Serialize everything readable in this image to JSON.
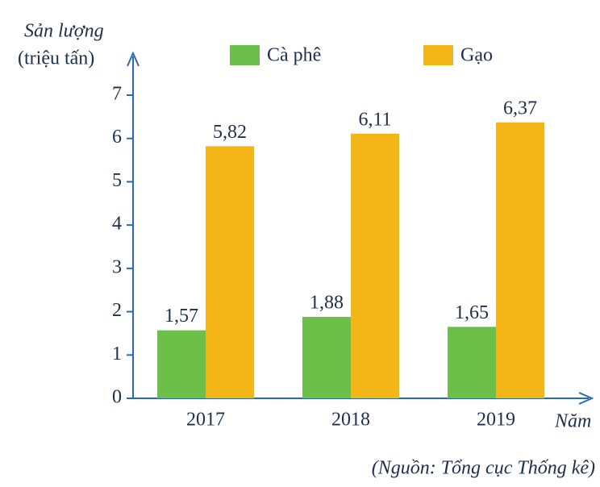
{
  "chart_data": {
    "type": "bar",
    "y_label": "Sản lượng",
    "y_unit": "(triệu tấn)",
    "x_label": "Năm",
    "source": "(Nguồn: Tổng cục Thống kê)",
    "categories": [
      "2017",
      "2018",
      "2019"
    ],
    "series": [
      {
        "name": "Cà phê",
        "color": "#6cc04a",
        "values": [
          1.57,
          1.88,
          1.65
        ],
        "value_labels": [
          "1,57",
          "1,88",
          "1,65"
        ]
      },
      {
        "name": "Gạo",
        "color": "#f4b516",
        "values": [
          5.82,
          6.11,
          6.37
        ],
        "value_labels": [
          "5,82",
          "6,11",
          "6,37"
        ]
      }
    ],
    "ylim": [
      0,
      7
    ],
    "yticks": [
      0,
      1,
      2,
      3,
      4,
      5,
      6,
      7
    ],
    "grid": false
  }
}
